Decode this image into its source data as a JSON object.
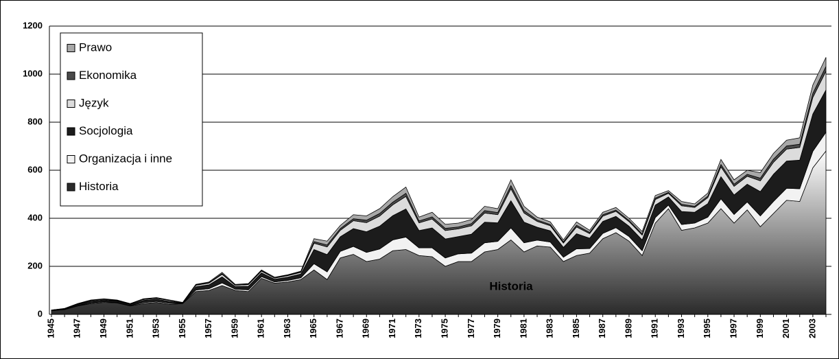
{
  "chart_data": {
    "type": "stacked-area",
    "annotation": "Historia",
    "categories": [
      "1945",
      null,
      "1947",
      null,
      "1949",
      null,
      "1951",
      null,
      "1953",
      null,
      "1955",
      null,
      "1957",
      null,
      "1959",
      null,
      "1961",
      null,
      "1963",
      null,
      "1965",
      null,
      "1967",
      null,
      "1969",
      null,
      "1971",
      null,
      "1973",
      null,
      "1975",
      null,
      "1977",
      null,
      "1979",
      null,
      "1981",
      null,
      "1983",
      null,
      "1985",
      null,
      "1987",
      null,
      "1989",
      null,
      "1991",
      null,
      "1993",
      null,
      "1995",
      null,
      "1997",
      null,
      "1999",
      null,
      "2001",
      null,
      "2003",
      null
    ],
    "series": [
      {
        "name": "Historia",
        "color": "#2a2a2a",
        "values": [
          15,
          20,
          35,
          45,
          50,
          48,
          35,
          45,
          50,
          42,
          45,
          95,
          100,
          120,
          100,
          95,
          150,
          130,
          135,
          145,
          185,
          145,
          235,
          250,
          220,
          230,
          265,
          270,
          245,
          240,
          200,
          220,
          220,
          260,
          270,
          310,
          260,
          285,
          280,
          220,
          245,
          255,
          315,
          340,
          305,
          245,
          380,
          440,
          350,
          360,
          380,
          440,
          380,
          435,
          365,
          420,
          475,
          470,
          610,
          680
        ]
      },
      {
        "name": "Organizacja i inne",
        "color": "#f2f2f2",
        "values": [
          1,
          1,
          2,
          3,
          3,
          2,
          2,
          4,
          4,
          4,
          1,
          6,
          7,
          11,
          5,
          7,
          7,
          5,
          6,
          7,
          26,
          32,
          27,
          33,
          38,
          42,
          45,
          52,
          32,
          37,
          35,
          32,
          35,
          38,
          34,
          50,
          38,
          24,
          21,
          18,
          28,
          19,
          22,
          21,
          19,
          20,
          23,
          15,
          24,
          20,
          25,
          41,
          36,
          33,
          45,
          50,
          50,
          53,
          69,
          78
        ]
      },
      {
        "name": "Socjologia",
        "color": "#1c1c1c",
        "values": [
          1,
          2,
          5,
          7,
          7,
          5,
          5,
          9,
          9,
          8,
          2,
          14,
          16,
          25,
          11,
          15,
          16,
          11,
          14,
          16,
          59,
          72,
          61,
          74,
          86,
          95,
          101,
          117,
          72,
          83,
          79,
          72,
          79,
          86,
          77,
          113,
          86,
          54,
          47,
          41,
          63,
          43,
          50,
          47,
          43,
          45,
          52,
          34,
          54,
          45,
          56,
          92,
          81,
          74,
          101,
          113,
          113,
          119,
          155,
          176
        ]
      },
      {
        "name": "Język",
        "color": "#dcdcdc",
        "values": [
          1,
          1,
          2,
          3,
          3,
          2,
          2,
          4,
          4,
          4,
          1,
          6,
          7,
          11,
          5,
          7,
          7,
          5,
          6,
          7,
          26,
          32,
          27,
          33,
          38,
          42,
          45,
          52,
          32,
          37,
          35,
          32,
          35,
          38,
          34,
          50,
          38,
          24,
          21,
          18,
          28,
          19,
          22,
          21,
          19,
          20,
          23,
          15,
          24,
          20,
          25,
          41,
          36,
          33,
          45,
          50,
          50,
          53,
          69,
          78
        ]
      },
      {
        "name": "Ekonomika",
        "color": "#4a4a4a",
        "values": [
          0,
          0,
          1,
          1,
          1,
          1,
          1,
          1,
          1,
          1,
          0,
          2,
          2,
          3,
          1,
          2,
          2,
          1,
          2,
          2,
          7,
          8,
          7,
          8,
          10,
          11,
          11,
          13,
          8,
          9,
          9,
          8,
          9,
          10,
          9,
          13,
          10,
          6,
          5,
          5,
          7,
          5,
          6,
          5,
          5,
          5,
          6,
          4,
          6,
          5,
          6,
          10,
          9,
          8,
          11,
          13,
          13,
          13,
          17,
          20
        ]
      },
      {
        "name": "Prawo",
        "color": "#a8a8a8",
        "values": [
          0,
          1,
          0,
          1,
          1,
          2,
          0,
          2,
          2,
          1,
          1,
          2,
          3,
          5,
          3,
          2,
          3,
          3,
          2,
          3,
          12,
          16,
          13,
          17,
          18,
          20,
          23,
          26,
          16,
          19,
          17,
          16,
          17,
          18,
          16,
          24,
          18,
          12,
          11,
          8,
          14,
          9,
          10,
          11,
          9,
          10,
          11,
          7,
          12,
          10,
          13,
          21,
          18,
          17,
          23,
          24,
          24,
          27,
          35,
          38
        ]
      }
    ],
    "ylim": [
      0,
      1200
    ],
    "yticks": [
      0,
      200,
      400,
      600,
      800,
      1000,
      1200
    ],
    "grid": true,
    "legend": "upper left"
  }
}
